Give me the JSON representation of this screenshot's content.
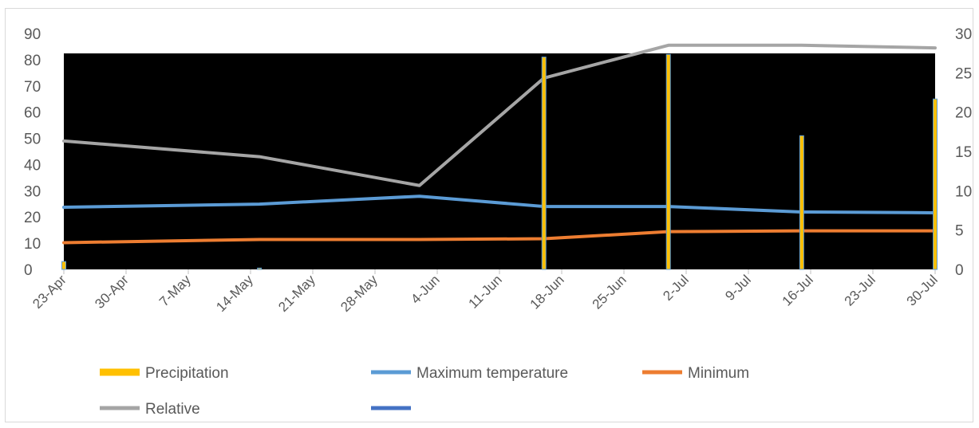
{
  "chart_data": {
    "type": "bar+line",
    "title": "",
    "x_dates": [
      "2024-04-23",
      "2024-05-15",
      "2024-06-02",
      "2024-06-16",
      "2024-06-30",
      "2024-07-15",
      "2024-07-30"
    ],
    "x_tick_labels": [
      "23-Apr",
      "30-Apr",
      "7-May",
      "14-May",
      "21-May",
      "28-May",
      "4-Jun",
      "11-Jun",
      "18-Jun",
      "25-Jun",
      "2-Jul",
      "9-Jul",
      "16-Jul",
      "23-Jul",
      "30-Jul"
    ],
    "y_left": {
      "min": 0,
      "max": 90,
      "ticks": [
        0,
        10,
        20,
        30,
        40,
        50,
        60,
        70,
        80,
        90
      ]
    },
    "y_right": {
      "min": 0,
      "max": 30,
      "ticks": [
        0,
        5,
        10,
        15,
        20,
        25,
        30
      ]
    },
    "series": [
      {
        "name": "Precipitation",
        "type": "bar",
        "axis": "left",
        "color": "#FFC000",
        "points": [
          [
            "2024-04-23",
            3
          ],
          [
            "2024-05-15",
            0.5
          ],
          [
            "2024-06-16",
            81
          ],
          [
            "2024-06-30",
            82
          ],
          [
            "2024-07-15",
            51
          ],
          [
            "2024-07-30",
            65
          ]
        ]
      },
      {
        "name": "Maximum temperature",
        "type": "line",
        "axis": "right",
        "color": "#5B9BD5",
        "points": [
          [
            "2024-04-23",
            7.9
          ],
          [
            "2024-05-15",
            8.3
          ],
          [
            "2024-06-02",
            9.3
          ],
          [
            "2024-06-16",
            8.0
          ],
          [
            "2024-06-30",
            8.0
          ],
          [
            "2024-07-15",
            7.3
          ],
          [
            "2024-07-30",
            7.2
          ]
        ]
      },
      {
        "name": "Minimum",
        "type": "line",
        "axis": "right",
        "color": "#ED7D31",
        "points": [
          [
            "2024-04-23",
            3.4
          ],
          [
            "2024-05-15",
            3.8
          ],
          [
            "2024-06-02",
            3.8
          ],
          [
            "2024-06-16",
            3.9
          ],
          [
            "2024-06-30",
            4.8
          ],
          [
            "2024-07-15",
            4.9
          ],
          [
            "2024-07-30",
            4.9
          ]
        ]
      },
      {
        "name": "Relative",
        "type": "line",
        "axis": "left",
        "color": "#A5A5A5",
        "points": [
          [
            "2024-04-23",
            49
          ],
          [
            "2024-05-15",
            43
          ],
          [
            "2024-06-02",
            32
          ],
          [
            "2024-06-16",
            73
          ],
          [
            "2024-06-30",
            85.5
          ],
          [
            "2024-07-15",
            85.5
          ],
          [
            "2024-07-30",
            84.5
          ]
        ]
      },
      {
        "name": "",
        "type": "line",
        "axis": "left",
        "color": "#4472C4",
        "points": []
      }
    ],
    "legend": {
      "position": "bottom",
      "items": [
        {
          "label": "Precipitation",
          "color": "#FFC000"
        },
        {
          "label": "Maximum temperature",
          "color": "#5B9BD5"
        },
        {
          "label": "Minimum",
          "color": "#ED7D31"
        },
        {
          "label": "Relative",
          "color": "#A5A5A5"
        },
        {
          "label": "",
          "color": "#4472C4"
        }
      ]
    },
    "plot_background": "#000000",
    "grid": false
  }
}
